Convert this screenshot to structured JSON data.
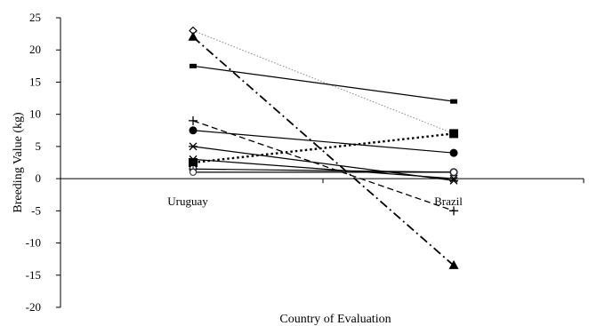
{
  "chart_data": {
    "type": "line",
    "title": "",
    "xlabel": "Country of Evaluation",
    "ylabel": "Breeding Value (kg)",
    "categories": [
      "Uruguay",
      "Brazil"
    ],
    "ylim": [
      -20,
      25
    ],
    "yticks": [
      "25",
      "20",
      "15",
      "10",
      "5",
      "0",
      "-5",
      "-10",
      "-15",
      "-20"
    ],
    "grid": false,
    "legend": "none",
    "series": [
      {
        "values": [
          23,
          7
        ],
        "marker": "diamond-open",
        "line": "dotted-thin",
        "color": "#888888"
      },
      {
        "values": [
          22,
          -13.5
        ],
        "marker": "triangle",
        "line": "dash-dot",
        "color": "#000000"
      },
      {
        "values": [
          17.5,
          12
        ],
        "marker": "dash",
        "line": "solid",
        "color": "#000000"
      },
      {
        "values": [
          9,
          -5
        ],
        "marker": "plus",
        "line": "dashed",
        "color": "#000000"
      },
      {
        "values": [
          7.5,
          4
        ],
        "marker": "circle",
        "line": "solid",
        "color": "#000000"
      },
      {
        "values": [
          5,
          -0.3
        ],
        "marker": "star",
        "line": "solid",
        "color": "#000000"
      },
      {
        "values": [
          2.5,
          7
        ],
        "marker": "square",
        "line": "dotted-bold",
        "color": "#000000"
      },
      {
        "values": [
          3,
          0
        ],
        "marker": "x",
        "line": "solid",
        "color": "#000000"
      },
      {
        "values": [
          1.5,
          1
        ],
        "marker": "circle-plus",
        "line": "solid",
        "color": "#000000"
      },
      {
        "values": [
          1,
          1
        ],
        "marker": "circle-open",
        "line": "solid",
        "color": "#000000"
      }
    ]
  }
}
